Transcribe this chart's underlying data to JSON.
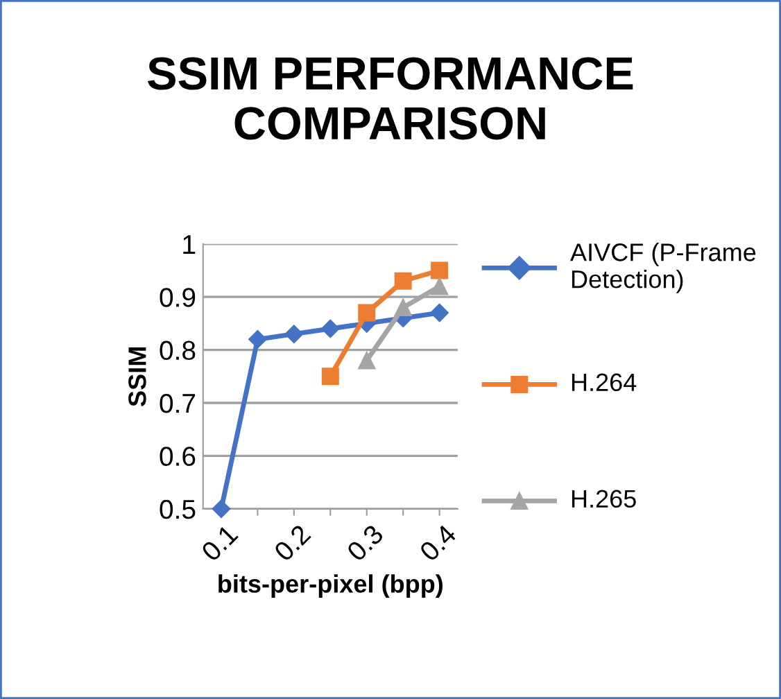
{
  "chart_data": {
    "type": "line",
    "title": "SSIM PERFORMANCE COMPARISON",
    "xlabel": "bits-per-pixel (bpp)",
    "ylabel": "SSIM",
    "categories": [
      "0.1",
      null,
      "0.2",
      null,
      "0.3",
      null,
      "0.4"
    ],
    "series": [
      {
        "name": "AIVCF (P-Frame Detection)",
        "color": "#4472c4",
        "marker": "diamond",
        "values": [
          0.5,
          0.82,
          0.83,
          0.84,
          0.85,
          0.86,
          0.87
        ]
      },
      {
        "name": "H.264",
        "color": "#ed7d31",
        "marker": "square",
        "values": [
          null,
          null,
          null,
          0.75,
          0.87,
          0.93,
          0.95
        ]
      },
      {
        "name": "H.265",
        "color": "#a5a5a5",
        "marker": "triangle",
        "values": [
          null,
          null,
          null,
          null,
          0.78,
          0.88,
          0.92
        ]
      }
    ],
    "ylim": [
      0.5,
      1
    ],
    "yticks": [
      0.5,
      0.6,
      0.7,
      0.8,
      0.9,
      1
    ],
    "grid": "y",
    "legend": "right",
    "line_style": "solid"
  }
}
